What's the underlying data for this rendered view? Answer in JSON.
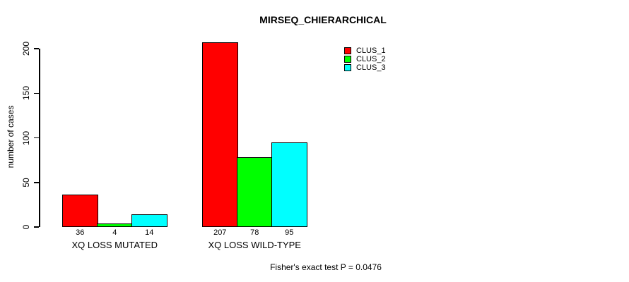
{
  "chart_data": {
    "type": "bar",
    "title": "MIRSEQ_CHIERARCHICAL",
    "ylabel": "number of cases",
    "xlabel": "",
    "categories": [
      "XQ LOSS MUTATED",
      "XQ LOSS WILD-TYPE"
    ],
    "series": [
      {
        "name": "CLUS_1",
        "color": "#FF0000",
        "values": [
          36,
          207
        ]
      },
      {
        "name": "CLUS_2",
        "color": "#00FF00",
        "values": [
          4,
          78
        ]
      },
      {
        "name": "CLUS_3",
        "color": "#00FFFF",
        "values": [
          14,
          95
        ]
      }
    ],
    "bar_value_labels": [
      [
        36,
        4,
        14
      ],
      [
        207,
        78,
        95
      ]
    ],
    "yticks": [
      0,
      50,
      100,
      150,
      200
    ],
    "ylim": [
      0,
      207
    ],
    "grid": false,
    "legend_position": "top-right",
    "annotation": "Fisher's exact test P = 0.0476",
    "axis_color": "#000000",
    "bar_border_color": "#000000"
  }
}
